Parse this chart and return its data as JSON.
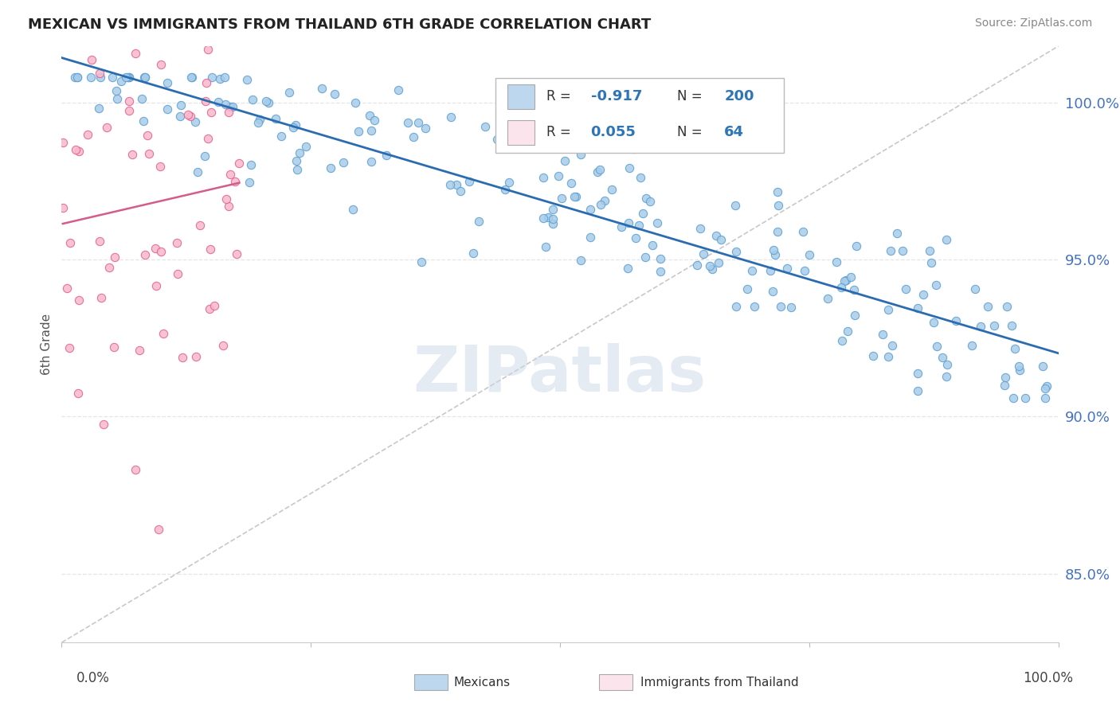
{
  "title": "MEXICAN VS IMMIGRANTS FROM THAILAND 6TH GRADE CORRELATION CHART",
  "source": "Source: ZipAtlas.com",
  "watermark": "ZIPatlas",
  "ylabel": "6th Grade",
  "ytick_values": [
    0.85,
    0.9,
    0.95,
    1.0
  ],
  "xlim": [
    0.0,
    1.0
  ],
  "ylim": [
    0.828,
    1.018
  ],
  "blue_scatter_color": "#a8cce8",
  "blue_scatter_edge": "#5a9fd4",
  "pink_scatter_color": "#f9b8cc",
  "pink_scatter_edge": "#e06090",
  "blue_line_color": "#2b6cb0",
  "pink_line_color": "#d45c8a",
  "dashed_line_color": "#c8c8c8",
  "title_color": "#222222",
  "ytick_color": "#4472c4",
  "legend_box_blue": "#bdd7ee",
  "legend_box_pink": "#fce4ec",
  "legend_text_color": "#333333",
  "legend_value_color": "#2e75b6",
  "source_color": "#888888",
  "watermark_color": "#ccd8e8",
  "grid_color": "#e5e5e5",
  "blue_seed": 17,
  "pink_seed": 99,
  "n_blue": 200,
  "n_pink": 64
}
